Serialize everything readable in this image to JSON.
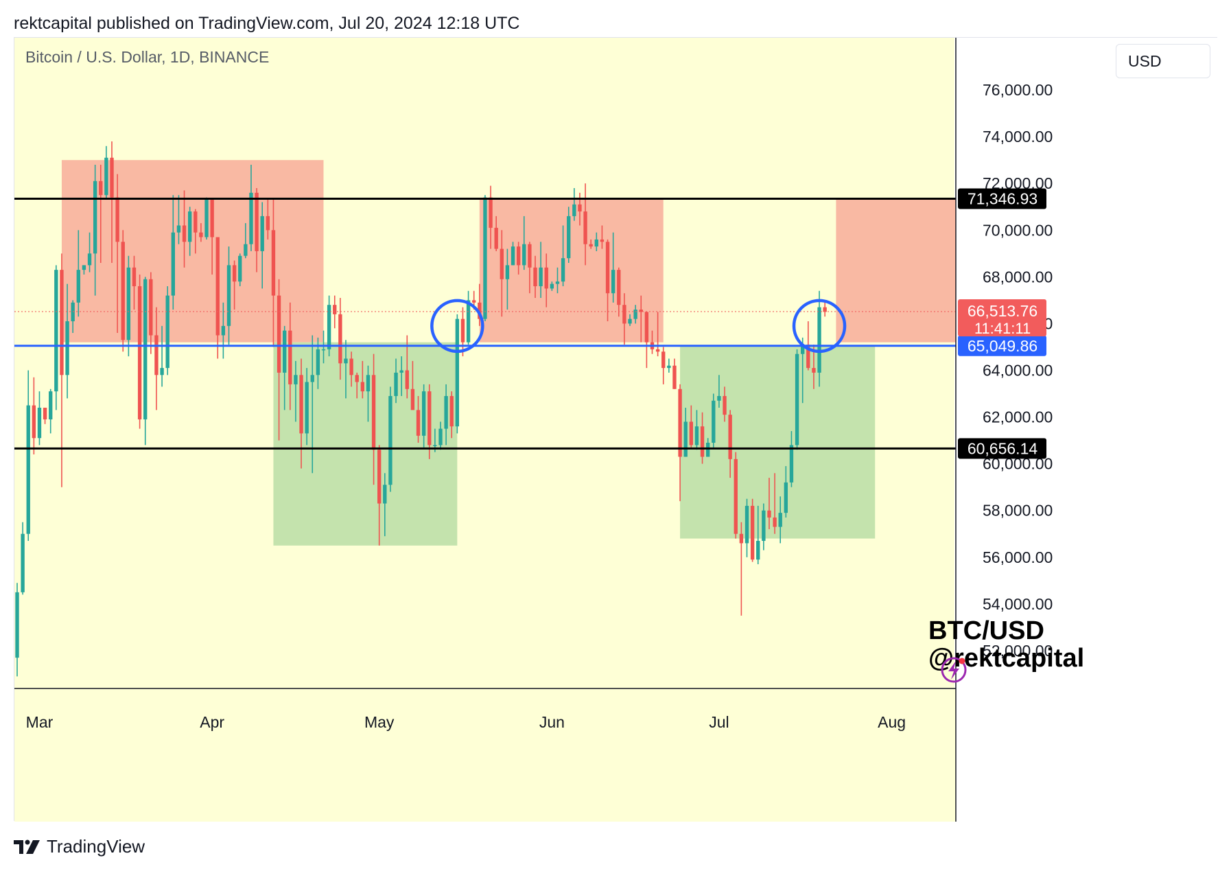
{
  "header": {
    "published_line": "rektcapital published on TradingView.com, Jul 20, 2024 12:18 UTC"
  },
  "footer": {
    "brand": "TradingView"
  },
  "currency_selector": "USD",
  "colors": {
    "background": "#feffd6",
    "up": "#26a69a",
    "down": "#ef5350",
    "red_zone": "#f9b9a3",
    "green_zone": "#c4e3ad",
    "blue_line": "#2962ff",
    "black_line": "#000000",
    "current_price": "#f25c5c"
  },
  "chart_data": {
    "type": "candlestick",
    "title": "Bitcoin / U.S. Dollar, 1D, BINANCE",
    "y_axis": {
      "ylim": [
        50500,
        78000
      ],
      "ticks": [
        "52,000.00",
        "54,000.00",
        "56,000.00",
        "58,000.00",
        "60,000.00",
        "62,000.00",
        "64,000.00",
        "66,000.00",
        "68,000.00",
        "70,000.00",
        "72,000.00",
        "74,000.00",
        "76,000.00"
      ],
      "tick_values": [
        52000,
        54000,
        56000,
        58000,
        60000,
        62000,
        64000,
        66000,
        68000,
        70000,
        72000,
        74000,
        76000
      ]
    },
    "x_axis": {
      "xlim": [
        "2024-02-26",
        "2024-08-13"
      ],
      "month_labels": [
        {
          "label": "Mar",
          "date": "2024-03-01"
        },
        {
          "label": "Apr",
          "date": "2024-04-01"
        },
        {
          "label": "May",
          "date": "2024-05-01"
        },
        {
          "label": "Jun",
          "date": "2024-06-01"
        },
        {
          "label": "Jul",
          "date": "2024-07-01"
        },
        {
          "label": "Aug",
          "date": "2024-08-01"
        }
      ]
    },
    "horizontal_lines": [
      {
        "value": 71346.93,
        "label": "71,346.93",
        "color": "#000000"
      },
      {
        "value": 65049.86,
        "label": "65,049.86",
        "color": "#2962ff"
      },
      {
        "value": 60656.14,
        "label": "60,656.14",
        "color": "#000000"
      }
    ],
    "current_price": {
      "value": 66513.76,
      "label": "66,513.76",
      "countdown": "11:41:11"
    },
    "zones": [
      {
        "kind": "resistance",
        "from": "2024-03-05",
        "to": "2024-04-21",
        "low": 65200,
        "high": 73000
      },
      {
        "kind": "resistance",
        "from": "2024-05-19",
        "to": "2024-06-21",
        "low": 65200,
        "high": 71346.93
      },
      {
        "kind": "resistance",
        "from": "2024-07-22",
        "to": "2024-08-13",
        "low": 65200,
        "high": 71346.93
      },
      {
        "kind": "support",
        "from": "2024-04-12",
        "to": "2024-05-15",
        "low": 56500,
        "high": 65200
      },
      {
        "kind": "support",
        "from": "2024-06-24",
        "to": "2024-07-29",
        "low": 56800,
        "high": 65049.86
      }
    ],
    "highlight_circles": [
      {
        "date": "2024-05-15",
        "price": 65900
      },
      {
        "date": "2024-07-19",
        "price": 65900
      }
    ],
    "candles": [
      [
        "2024-02-26",
        51700,
        54900,
        50900,
        54500
      ],
      [
        "2024-02-27",
        54500,
        57500,
        54400,
        57000
      ],
      [
        "2024-02-28",
        57000,
        64000,
        56700,
        62500
      ],
      [
        "2024-02-29",
        62500,
        63700,
        60400,
        61100
      ],
      [
        "2024-03-01",
        61100,
        63100,
        60800,
        62400
      ],
      [
        "2024-03-02",
        62400,
        62400,
        61700,
        61900
      ],
      [
        "2024-03-03",
        61900,
        63200,
        61300,
        63100
      ],
      [
        "2024-03-04",
        63100,
        68500,
        62300,
        68300
      ],
      [
        "2024-03-05",
        68300,
        69000,
        59000,
        63800
      ],
      [
        "2024-03-06",
        63800,
        67700,
        62800,
        66100
      ],
      [
        "2024-03-07",
        66100,
        67000,
        65600,
        66900
      ],
      [
        "2024-03-08",
        66900,
        70000,
        66300,
        68300
      ],
      [
        "2024-03-09",
        68300,
        68500,
        68100,
        68500
      ],
      [
        "2024-03-10",
        68500,
        69900,
        68200,
        69000
      ],
      [
        "2024-03-11",
        69000,
        72800,
        67200,
        72100
      ],
      [
        "2024-03-12",
        72100,
        72800,
        68600,
        71500
      ],
      [
        "2024-03-13",
        71500,
        73600,
        71300,
        73100
      ],
      [
        "2024-03-14",
        73100,
        73800,
        68600,
        71400
      ],
      [
        "2024-03-15",
        71400,
        72400,
        65600,
        69500
      ],
      [
        "2024-03-16",
        69500,
        70000,
        64800,
        65300
      ],
      [
        "2024-03-17",
        65300,
        68900,
        64600,
        68400
      ],
      [
        "2024-03-18",
        68400,
        68900,
        66600,
        67600
      ],
      [
        "2024-03-19",
        67600,
        68100,
        61500,
        61900
      ],
      [
        "2024-03-20",
        61900,
        68000,
        60800,
        67900
      ],
      [
        "2024-03-21",
        67900,
        68200,
        64700,
        65500
      ],
      [
        "2024-03-22",
        65500,
        66700,
        62300,
        63800
      ],
      [
        "2024-03-23",
        63800,
        65900,
        63300,
        64100
      ],
      [
        "2024-03-24",
        64100,
        67600,
        63800,
        67200
      ],
      [
        "2024-03-25",
        67200,
        71500,
        66600,
        69900
      ],
      [
        "2024-03-26",
        69900,
        71500,
        69400,
        70200
      ],
      [
        "2024-03-27",
        70200,
        71700,
        68400,
        69500
      ],
      [
        "2024-03-28",
        69500,
        71000,
        68900,
        70800
      ],
      [
        "2024-03-29",
        70800,
        70900,
        69000,
        69900
      ],
      [
        "2024-03-30",
        69900,
        70300,
        69500,
        69700
      ],
      [
        "2024-03-31",
        69700,
        71400,
        69600,
        71300
      ],
      [
        "2024-04-01",
        71300,
        71300,
        68100,
        69700
      ],
      [
        "2024-04-02",
        69700,
        69700,
        64500,
        65500
      ],
      [
        "2024-04-03",
        65500,
        66900,
        64500,
        65900
      ],
      [
        "2024-04-04",
        65900,
        69300,
        65100,
        68500
      ],
      [
        "2024-04-05",
        68500,
        68700,
        66600,
        67800
      ],
      [
        "2024-04-06",
        67800,
        69000,
        67600,
        68900
      ],
      [
        "2024-04-07",
        68900,
        70300,
        68800,
        69400
      ],
      [
        "2024-04-08",
        69400,
        72800,
        69100,
        71600
      ],
      [
        "2024-04-09",
        71600,
        71800,
        68200,
        69100
      ],
      [
        "2024-04-10",
        69100,
        71200,
        67500,
        70600
      ],
      [
        "2024-04-11",
        70600,
        71300,
        69600,
        70000
      ],
      [
        "2024-04-12",
        70000,
        71300,
        65000,
        67200
      ],
      [
        "2024-04-13",
        67200,
        67900,
        61000,
        63900
      ],
      [
        "2024-04-14",
        63900,
        65900,
        62300,
        65700
      ],
      [
        "2024-04-15",
        65700,
        66900,
        62300,
        63400
      ],
      [
        "2024-04-16",
        63400,
        64400,
        61800,
        63800
      ],
      [
        "2024-04-17",
        63800,
        64500,
        59800,
        61300
      ],
      [
        "2024-04-18",
        61300,
        64100,
        60800,
        63500
      ],
      [
        "2024-04-19",
        63500,
        65500,
        59600,
        63800
      ],
      [
        "2024-04-20",
        63800,
        65400,
        63200,
        64900
      ],
      [
        "2024-04-21",
        64900,
        65700,
        64300,
        64900
      ],
      [
        "2024-04-22",
        64900,
        67200,
        64600,
        66800
      ],
      [
        "2024-04-23",
        66800,
        67200,
        65800,
        66400
      ],
      [
        "2024-04-24",
        66400,
        67100,
        63600,
        64300
      ],
      [
        "2024-04-25",
        64300,
        65300,
        62800,
        64500
      ],
      [
        "2024-04-26",
        64500,
        64800,
        63300,
        63800
      ],
      [
        "2024-04-27",
        63800,
        63900,
        62800,
        63500
      ],
      [
        "2024-04-28",
        63500,
        64400,
        62800,
        63100
      ],
      [
        "2024-04-29",
        63100,
        64200,
        61800,
        63800
      ],
      [
        "2024-04-30",
        63800,
        64700,
        59100,
        60600
      ],
      [
        "2024-05-01",
        60600,
        60800,
        56500,
        58300
      ],
      [
        "2024-05-02",
        58300,
        59600,
        56900,
        59100
      ],
      [
        "2024-05-03",
        59100,
        63300,
        58800,
        62900
      ],
      [
        "2024-05-04",
        62900,
        64500,
        62600,
        63900
      ],
      [
        "2024-05-05",
        63900,
        64600,
        62900,
        64000
      ],
      [
        "2024-05-06",
        64000,
        65500,
        62800,
        63200
      ],
      [
        "2024-05-07",
        63200,
        64400,
        62400,
        62300
      ],
      [
        "2024-05-08",
        62300,
        62900,
        60900,
        61200
      ],
      [
        "2024-05-09",
        61200,
        63400,
        60700,
        63100
      ],
      [
        "2024-05-10",
        63100,
        63400,
        60200,
        60800
      ],
      [
        "2024-05-11",
        60800,
        61500,
        60500,
        60800
      ],
      [
        "2024-05-12",
        60800,
        61800,
        60600,
        61500
      ],
      [
        "2024-05-13",
        61500,
        63400,
        60800,
        62900
      ],
      [
        "2024-05-14",
        62900,
        63100,
        61100,
        61600
      ],
      [
        "2024-05-15",
        61600,
        66400,
        61300,
        66200
      ],
      [
        "2024-05-16",
        66200,
        66700,
        64600,
        65200
      ],
      [
        "2024-05-17",
        65200,
        67400,
        65100,
        67000
      ],
      [
        "2024-05-18",
        67000,
        67400,
        66600,
        66900
      ],
      [
        "2024-05-19",
        66900,
        67700,
        65900,
        66200
      ],
      [
        "2024-05-20",
        66200,
        71500,
        66100,
        71400
      ],
      [
        "2024-05-21",
        71400,
        71900,
        69200,
        70100
      ],
      [
        "2024-05-22",
        70100,
        70600,
        69100,
        69200
      ],
      [
        "2024-05-23",
        69200,
        70000,
        66300,
        67900
      ],
      [
        "2024-05-24",
        67900,
        69200,
        66600,
        68500
      ],
      [
        "2024-05-25",
        68500,
        69500,
        68500,
        69300
      ],
      [
        "2024-05-26",
        69300,
        69500,
        68100,
        68500
      ],
      [
        "2024-05-27",
        68500,
        70600,
        68300,
        69400
      ],
      [
        "2024-05-28",
        69400,
        69500,
        67300,
        68400
      ],
      [
        "2024-05-29",
        68400,
        68900,
        67100,
        67600
      ],
      [
        "2024-05-30",
        67600,
        69500,
        67100,
        68400
      ],
      [
        "2024-05-31",
        68400,
        69000,
        66700,
        67500
      ],
      [
        "2024-06-01",
        67500,
        67800,
        67400,
        67700
      ],
      [
        "2024-06-02",
        67700,
        68400,
        67300,
        67800
      ],
      [
        "2024-06-03",
        67800,
        70200,
        67600,
        68800
      ],
      [
        "2024-06-04",
        68800,
        71000,
        68600,
        70600
      ],
      [
        "2024-06-05",
        70600,
        71800,
        70400,
        71100
      ],
      [
        "2024-06-06",
        71100,
        71600,
        70200,
        70800
      ],
      [
        "2024-06-07",
        70800,
        72000,
        68500,
        69400
      ],
      [
        "2024-06-08",
        69400,
        69600,
        69200,
        69300
      ],
      [
        "2024-06-09",
        69300,
        69900,
        69100,
        69600
      ],
      [
        "2024-06-10",
        69600,
        70200,
        69200,
        69500
      ],
      [
        "2024-06-11",
        69500,
        69600,
        66100,
        67300
      ],
      [
        "2024-06-12",
        67300,
        69900,
        66900,
        68300
      ],
      [
        "2024-06-13",
        68300,
        68400,
        66300,
        66800
      ],
      [
        "2024-06-14",
        66800,
        67300,
        65100,
        66000
      ],
      [
        "2024-06-15",
        66000,
        66400,
        65900,
        66200
      ],
      [
        "2024-06-16",
        66200,
        66800,
        66000,
        66600
      ],
      [
        "2024-06-17",
        66600,
        67200,
        65200,
        66500
      ],
      [
        "2024-06-18",
        66500,
        66500,
        64100,
        65200
      ],
      [
        "2024-06-19",
        65200,
        65700,
        64700,
        64900
      ],
      [
        "2024-06-20",
        64900,
        66500,
        64600,
        64800
      ],
      [
        "2024-06-21",
        64800,
        65000,
        63400,
        64100
      ],
      [
        "2024-06-22",
        64100,
        64500,
        63900,
        64200
      ],
      [
        "2024-06-23",
        64200,
        64500,
        63200,
        63200
      ],
      [
        "2024-06-24",
        63200,
        63400,
        58400,
        60300
      ],
      [
        "2024-06-25",
        60300,
        62400,
        60300,
        61800
      ],
      [
        "2024-06-26",
        61800,
        62500,
        60700,
        60800
      ],
      [
        "2024-06-27",
        60800,
        62300,
        60600,
        61600
      ],
      [
        "2024-06-28",
        61600,
        62200,
        60000,
        60300
      ],
      [
        "2024-06-29",
        60300,
        61100,
        60300,
        60900
      ],
      [
        "2024-06-30",
        60900,
        63000,
        60700,
        62700
      ],
      [
        "2024-07-01",
        62700,
        63800,
        62400,
        62900
      ],
      [
        "2024-07-02",
        62900,
        63300,
        61800,
        62100
      ],
      [
        "2024-07-03",
        62100,
        62300,
        59400,
        60200
      ],
      [
        "2024-07-04",
        60200,
        60500,
        56800,
        57000
      ],
      [
        "2024-07-05",
        57000,
        57500,
        53500,
        56600
      ],
      [
        "2024-07-06",
        56600,
        58500,
        56000,
        58200
      ],
      [
        "2024-07-07",
        58200,
        58500,
        55800,
        55900
      ],
      [
        "2024-07-08",
        55900,
        58200,
        55700,
        56700
      ],
      [
        "2024-07-09",
        56700,
        58300,
        56300,
        58000
      ],
      [
        "2024-07-10",
        58000,
        59400,
        57200,
        57700
      ],
      [
        "2024-07-11",
        57700,
        59600,
        57000,
        57300
      ],
      [
        "2024-07-12",
        57300,
        58600,
        56600,
        57900
      ],
      [
        "2024-07-13",
        57900,
        59900,
        57700,
        59200
      ],
      [
        "2024-07-14",
        59200,
        61400,
        59000,
        60800
      ],
      [
        "2024-07-15",
        60800,
        64900,
        60600,
        64700
      ],
      [
        "2024-07-16",
        64700,
        65400,
        62600,
        65100
      ],
      [
        "2024-07-17",
        65100,
        66100,
        64000,
        64100
      ],
      [
        "2024-07-18",
        64100,
        65100,
        63200,
        63900
      ],
      [
        "2024-07-19",
        63900,
        67400,
        63300,
        66700
      ],
      [
        "2024-07-20",
        66700,
        66900,
        66300,
        66500
      ]
    ]
  },
  "watermark": {
    "line1": "BTC/USD",
    "line2": "@rektcapital"
  }
}
